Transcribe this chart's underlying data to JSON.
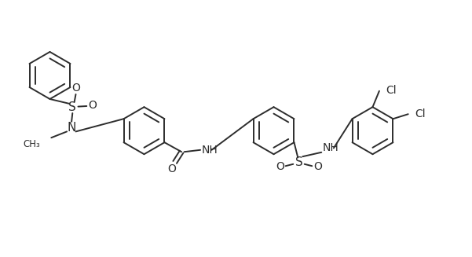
{
  "background_color": "#ffffff",
  "line_color": "#2d2d2d",
  "line_width": 1.4,
  "figsize": [
    6.01,
    3.27
  ],
  "dpi": 100,
  "xlim": [
    0,
    10
  ],
  "ylim": [
    0,
    5.45
  ]
}
